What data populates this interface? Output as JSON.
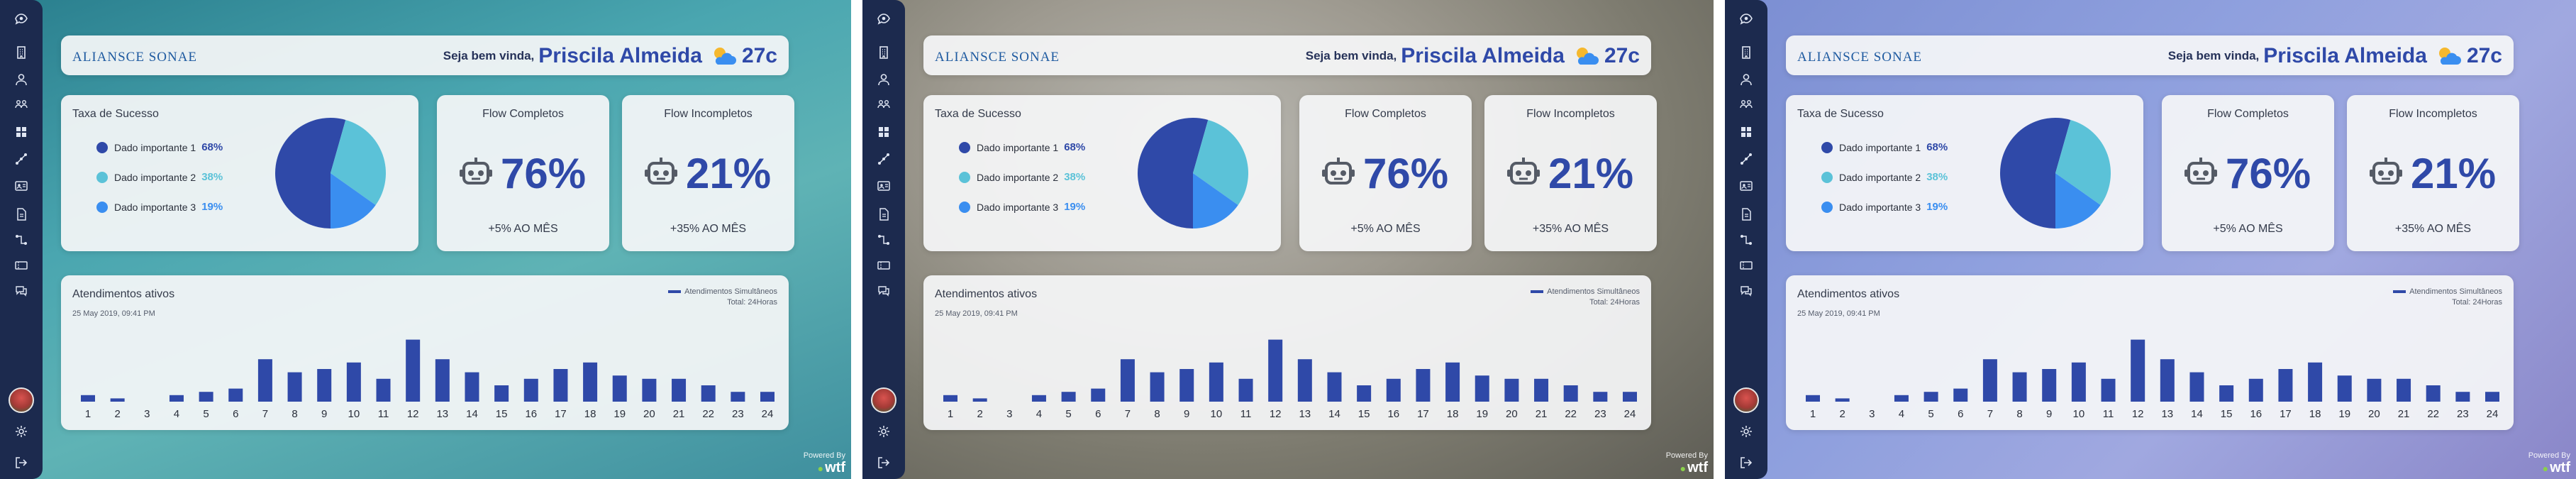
{
  "colors": {
    "accent": "#2f49a8",
    "sidebar": "#1c2a4e",
    "slice1": "#2f49a8",
    "slice2": "#5bc2d8",
    "slice3": "#3a8ef0"
  },
  "sidebar": {
    "items": [
      {
        "icon": "eye-bubble-icon"
      },
      {
        "icon": "building-icon"
      },
      {
        "icon": "user-icon"
      },
      {
        "icon": "users-group-icon"
      },
      {
        "icon": "grid-icon"
      },
      {
        "icon": "flow-icon"
      },
      {
        "icon": "id-card-icon"
      },
      {
        "icon": "document-icon"
      },
      {
        "icon": "connections-icon"
      },
      {
        "icon": "ticket-icon"
      },
      {
        "icon": "chat-icon"
      }
    ],
    "bottom": [
      {
        "icon": "avatar"
      },
      {
        "icon": "gear-icon"
      },
      {
        "icon": "logout-icon"
      }
    ]
  },
  "header": {
    "logo_text": "ALIANSCE SONAE",
    "welcome": "Seja bem vinda,",
    "user_name": "Priscila Almeida",
    "temperature": "27c",
    "weather_icon": "partly-cloudy-icon"
  },
  "success_card": {
    "title": "Taxa de Sucesso",
    "items": [
      {
        "label": "Dado importante 1",
        "value": "68%"
      },
      {
        "label": "Dado importante 2",
        "value": "38%"
      },
      {
        "label": "Dado importante 3",
        "value": "19%"
      }
    ]
  },
  "flow_completos": {
    "title": "Flow Completos",
    "value": "76%",
    "sub": "+5% AO MÊS",
    "icon": "robot-icon"
  },
  "flow_incompletos": {
    "title": "Flow Incompletos",
    "value": "21%",
    "sub": "+35% AO MÊS",
    "icon": "robot-icon"
  },
  "chart": {
    "title": "Atendimentos ativos",
    "date": "25 May 2019, 09:41 PM",
    "legend": "Atendimentos Simultâneos",
    "total": "Total: 24Horas"
  },
  "powered": {
    "label": "Powered By",
    "brand": "wtf"
  },
  "chart_data": [
    {
      "type": "pie",
      "title": "Taxa de Sucesso",
      "categories": [
        "Dado importante 1",
        "Dado importante 2",
        "Dado importante 3"
      ],
      "values": [
        68,
        38,
        19
      ],
      "legend": "left"
    },
    {
      "type": "bar",
      "title": "Atendimentos ativos",
      "series": [
        {
          "name": "Atendimentos Simultâneos",
          "values": [
            2,
            1,
            0,
            2,
            3,
            4,
            13,
            9,
            10,
            12,
            7,
            19,
            13,
            9,
            5,
            7,
            10,
            12,
            8,
            7,
            7,
            5,
            3,
            3
          ]
        }
      ],
      "categories": [
        "1",
        "2",
        "3",
        "4",
        "5",
        "6",
        "7",
        "8",
        "9",
        "10",
        "11",
        "12",
        "13",
        "14",
        "15",
        "16",
        "17",
        "18",
        "19",
        "20",
        "21",
        "22",
        "23",
        "24"
      ],
      "ylim": [
        0,
        20
      ],
      "grid": false,
      "legend": "top-right"
    }
  ]
}
